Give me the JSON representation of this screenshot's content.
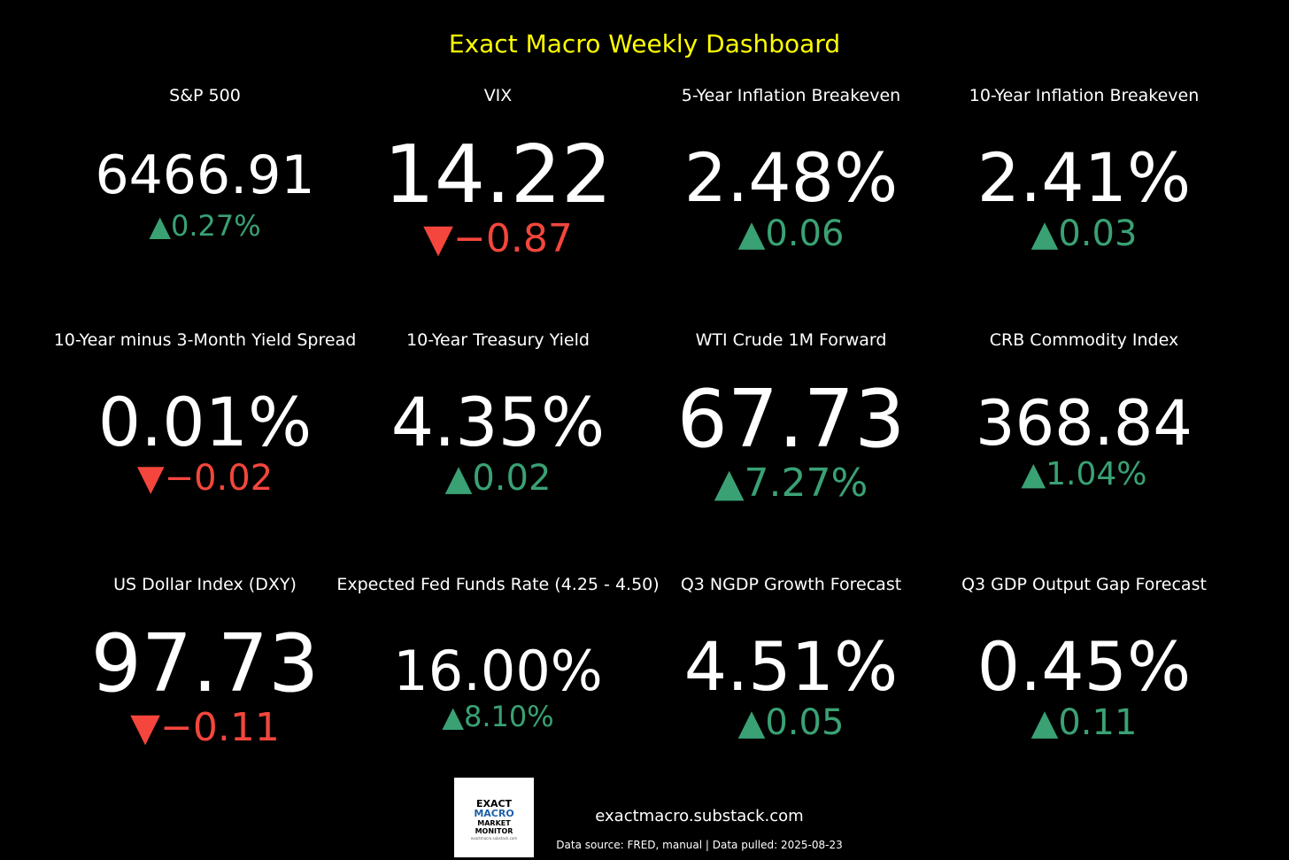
{
  "title": "Exact Macro Weekly Dashboard",
  "colors": {
    "title": "#ffff00",
    "up": "#3aa174",
    "down": "#f4463c",
    "value": "#ffffff",
    "background": "#000000"
  },
  "tiles": [
    {
      "label": "S&P 500",
      "value": "6466.91",
      "change": "▲0.27%",
      "direction": "up"
    },
    {
      "label": "VIX",
      "value": "14.22",
      "change": "▼−0.87",
      "direction": "down"
    },
    {
      "label": "5-Year Inflation Breakeven",
      "value": "2.48%",
      "change": "▲0.06",
      "direction": "up"
    },
    {
      "label": "10-Year Inflation Breakeven",
      "value": "2.41%",
      "change": "▲0.03",
      "direction": "up"
    },
    {
      "label": "10-Year minus 3-Month Yield Spread",
      "value": "0.01%",
      "change": "▼−0.02",
      "direction": "down"
    },
    {
      "label": "10-Year Treasury Yield",
      "value": "4.35%",
      "change": "▲0.02",
      "direction": "up"
    },
    {
      "label": "WTI Crude 1M Forward",
      "value": "67.73",
      "change": "▲7.27%",
      "direction": "up"
    },
    {
      "label": "CRB Commodity Index",
      "value": "368.84",
      "change": "▲1.04%",
      "direction": "up"
    },
    {
      "label": "US Dollar Index (DXY)",
      "value": "97.73",
      "change": "▼−0.11",
      "direction": "down"
    },
    {
      "label": "Expected Fed Funds Rate (4.25 - 4.50)",
      "value": "16.00%",
      "change": "▲8.10%",
      "direction": "up"
    },
    {
      "label": "Q3 NGDP Growth Forecast",
      "value": "4.51%",
      "change": "▲0.05",
      "direction": "up"
    },
    {
      "label": "Q3 GDP Output Gap Forecast",
      "value": "0.45%",
      "change": "▲0.11",
      "direction": "up"
    }
  ],
  "logo": {
    "line1": "EXACT",
    "line2": "MACRO",
    "line3": "MARKET",
    "line4": "MONITOR",
    "line5": "exactmacro.substack.com"
  },
  "footer": {
    "url": "exactmacro.substack.com",
    "source": "Data source: FRED, manual | Data pulled: 2025-08-23"
  }
}
